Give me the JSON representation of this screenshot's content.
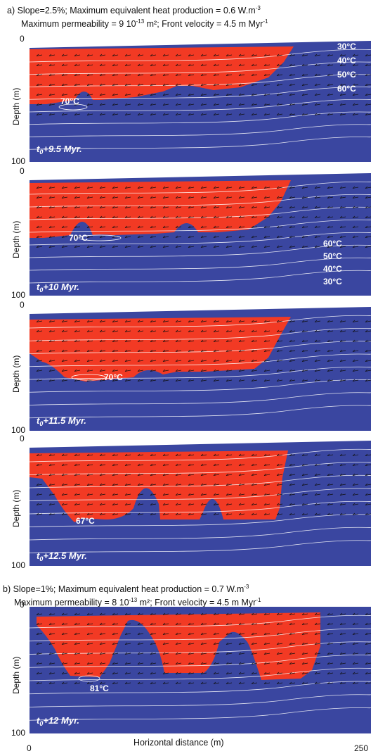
{
  "section_a": {
    "line1_pre": "a) Slope=2.5%; Maximum equivalent heat production = 0.6 W.m",
    "line1_sup": "-3",
    "line2_pre": "Maximum permeability = 9 10",
    "line2_sup": "-13",
    "line2_mid": " m²; Front velocity = 4.5 m Myr",
    "line2_sup2": "-1"
  },
  "section_b": {
    "line1_pre": "b) Slope=1%; Maximum equivalent heat production = 0.7 W.m",
    "line1_sup": "-3",
    "line2_pre": "Maximum permeability = 8 10",
    "line2_sup": "-13",
    "line2_mid": " m²; Front velocity = 4.5 m Myr",
    "line2_sup2": "-1"
  },
  "axis": {
    "depth_label": "Depth  (m)",
    "depth_top": "0",
    "depth_bottom": "100",
    "x_label": "Horizontal distance  (m)",
    "x_min": "0",
    "x_max": "250"
  },
  "panels": [
    {
      "time_t": "t",
      "time_sub": "0",
      "time_rest": "+9.5 Myr.",
      "core_temp": "70°C",
      "isotherms": [
        "30°C",
        "40°C",
        "50°C",
        "60°C"
      ]
    },
    {
      "time_t": "t",
      "time_sub": "0",
      "time_rest": "+10 Myr.",
      "core_temp": "70°C",
      "isotherms": [
        "60°C",
        "50°C",
        "40°C",
        "30°C"
      ]
    },
    {
      "time_t": "t",
      "time_sub": "0",
      "time_rest": "+11.5 Myr.",
      "core_temp": "70°C",
      "isotherms": []
    },
    {
      "time_t": "t",
      "time_sub": "0",
      "time_rest": "+12.5 Myr.",
      "core_temp": "67°C",
      "isotherms": []
    },
    {
      "time_t": "t",
      "time_sub": "0",
      "time_rest": "+12 Myr.",
      "core_temp": "81°C",
      "isotherms": []
    }
  ],
  "colors": {
    "background": "#3a46a0",
    "hot_zone": "#f23a24",
    "isotherm": "#ffffff",
    "vector": "#111111"
  }
}
